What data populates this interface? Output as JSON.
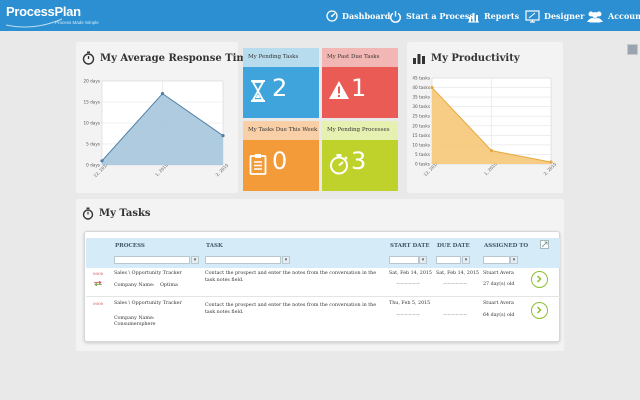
{
  "brand": {
    "name": "ProcessPlan",
    "tagline": "Process Made Simple"
  },
  "nav": [
    {
      "label": "Dashboard",
      "icon": "dashboard-icon"
    },
    {
      "label": "Start a Process",
      "icon": "power-icon"
    },
    {
      "label": "Reports",
      "icon": "reports-icon"
    },
    {
      "label": "Designer",
      "icon": "designer-icon"
    },
    {
      "label": "Account",
      "icon": "account-icon"
    }
  ],
  "response_panel": {
    "title": "My Average Response Time",
    "icon": "stopwatch-icon"
  },
  "productivity_panel": {
    "title": "My Productivity",
    "icon": "bar-chart-icon"
  },
  "tiles": [
    {
      "title": "My Pending Tasks",
      "value": "2",
      "icon": "hourglass-icon",
      "head_color": "#b7dcee",
      "body_color": "#3fa4db"
    },
    {
      "title": "My Past Due Tasks",
      "value": "1",
      "icon": "warning-icon",
      "head_color": "#f2b7b5",
      "body_color": "#ea5b55"
    },
    {
      "title": "My Tasks Due This Week",
      "value": "0",
      "icon": "clipboard-icon",
      "head_color": "#f8cfa6",
      "body_color": "#f39b39"
    },
    {
      "title": "My Pending Processes",
      "value": "3",
      "icon": "timer-icon",
      "head_color": "#e6f0b0",
      "body_color": "#bfd22b"
    }
  ],
  "tasks": {
    "title": "My Tasks",
    "icon": "stopwatch-icon",
    "columns": [
      "PROCESS",
      "TASK",
      "START DATE",
      "DUE DATE",
      "ASSIGNED TO"
    ],
    "rows": [
      {
        "flag": "0000",
        "process": "Sales \\ Opportunity Tracker",
        "company_label": "Company Name:",
        "company_value": "Optima",
        "task_line1": "Contact the prospect and enter the notes from the conversation in the",
        "task_line2": "task notes field.",
        "start_date": "Sat, Feb 14, 2015",
        "due_date": "Sat, Feb 14, 2015",
        "assigned_to": "Stuart Avera",
        "age": "27 day(s) old",
        "start_sub": "~~~~~~",
        "due_sub": "~~~~~~"
      },
      {
        "flag": "0000",
        "process": "Sales \\ Opportunity Tracker",
        "company_label": "Company Name:",
        "company_value": "Consumersphere",
        "task_line1": "Contact the prospect and enter the notes from the conversation in the",
        "task_line2": "task notes field.",
        "start_date": "Thu, Feb 5, 2015",
        "due_date": "",
        "assigned_to": "Stuart Avera",
        "age": "64 day(s) old",
        "start_sub": "~~~~~~",
        "due_sub": "~~~~~~"
      }
    ]
  },
  "chart_data": [
    {
      "type": "area",
      "title": "My Average Response Time",
      "x": [
        "12, 2014",
        "1, 2015",
        "2, 2015"
      ],
      "values": [
        1,
        17,
        7
      ],
      "y_ticks": [
        "0 days",
        "5 days",
        "10 days",
        "15 days",
        "20 days"
      ],
      "ylim": [
        0,
        20
      ],
      "grid": true,
      "fill": "#a6c5dc",
      "line": "#4d7fa6"
    },
    {
      "type": "area",
      "title": "My Productivity",
      "x": [
        "12, 2014",
        "1, 2015",
        "2, 2015"
      ],
      "values": [
        40,
        7,
        1
      ],
      "y_ticks": [
        "0 tasks",
        "5 tasks",
        "10 tasks",
        "15 tasks",
        "20 tasks",
        "25 tasks",
        "30 tasks",
        "35 tasks",
        "40 tasks",
        "45 tasks"
      ],
      "ylim": [
        0,
        45
      ],
      "grid": true,
      "fill": "#f6c778",
      "line": "#e6a93f"
    }
  ]
}
